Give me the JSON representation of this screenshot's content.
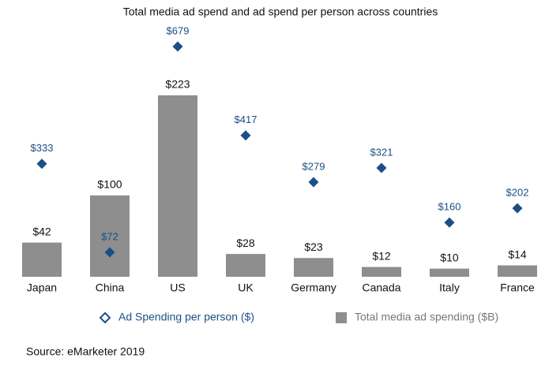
{
  "chart_data": {
    "type": "bar",
    "title": "Total media ad spend and ad spend per person across countries",
    "categories": [
      "Japan",
      "China",
      "US",
      "UK",
      "Germany",
      "Canada",
      "Italy",
      "France"
    ],
    "series": [
      {
        "name": "Total media ad spending ($B)",
        "type": "bar",
        "color": "#8e8e8e",
        "values": [
          42,
          100,
          223,
          28,
          23,
          12,
          10,
          14
        ],
        "value_labels": [
          "$42",
          "$100",
          "$223",
          "$28",
          "$23",
          "$12",
          "$10",
          "$14"
        ]
      },
      {
        "name": "Ad Spending per person ($)",
        "type": "scatter",
        "axis": "y2",
        "color": "#1b4f86",
        "values": [
          333,
          72,
          679,
          417,
          279,
          321,
          160,
          202
        ],
        "value_labels": [
          "$333",
          "$72",
          "$679",
          "$417",
          "$279",
          "$321",
          "$160",
          "$202"
        ]
      }
    ],
    "ylim": [
      0,
      250
    ],
    "y2lim": [
      0,
      600
    ],
    "source": "Source: eMarketer 2019"
  }
}
